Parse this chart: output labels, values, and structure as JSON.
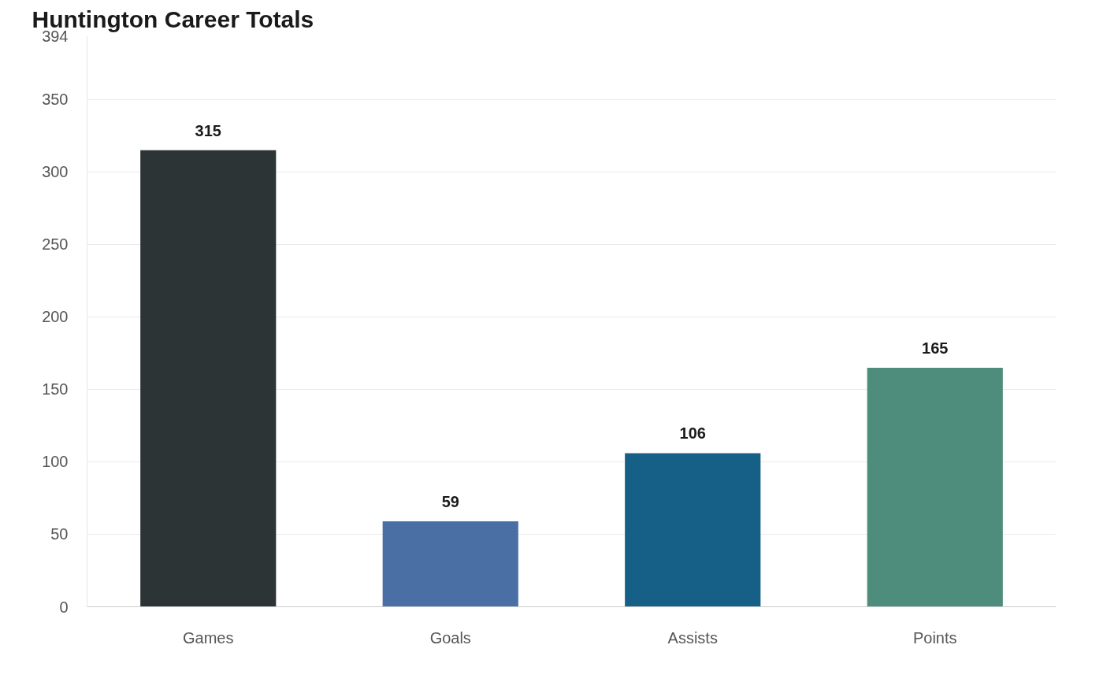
{
  "chart_data": {
    "type": "bar",
    "title": "Huntington Career Totals",
    "categories": [
      "Games",
      "Goals",
      "Assists",
      "Points"
    ],
    "values": [
      315,
      59,
      106,
      165
    ],
    "colors": [
      "#2d3436",
      "#4a6fa5",
      "#166088",
      "#4e8d7c"
    ],
    "ylim": [
      0,
      394
    ],
    "yticks": [
      0,
      50,
      100,
      150,
      200,
      250,
      300,
      350,
      394
    ],
    "grid": "y",
    "data_labels": true
  }
}
